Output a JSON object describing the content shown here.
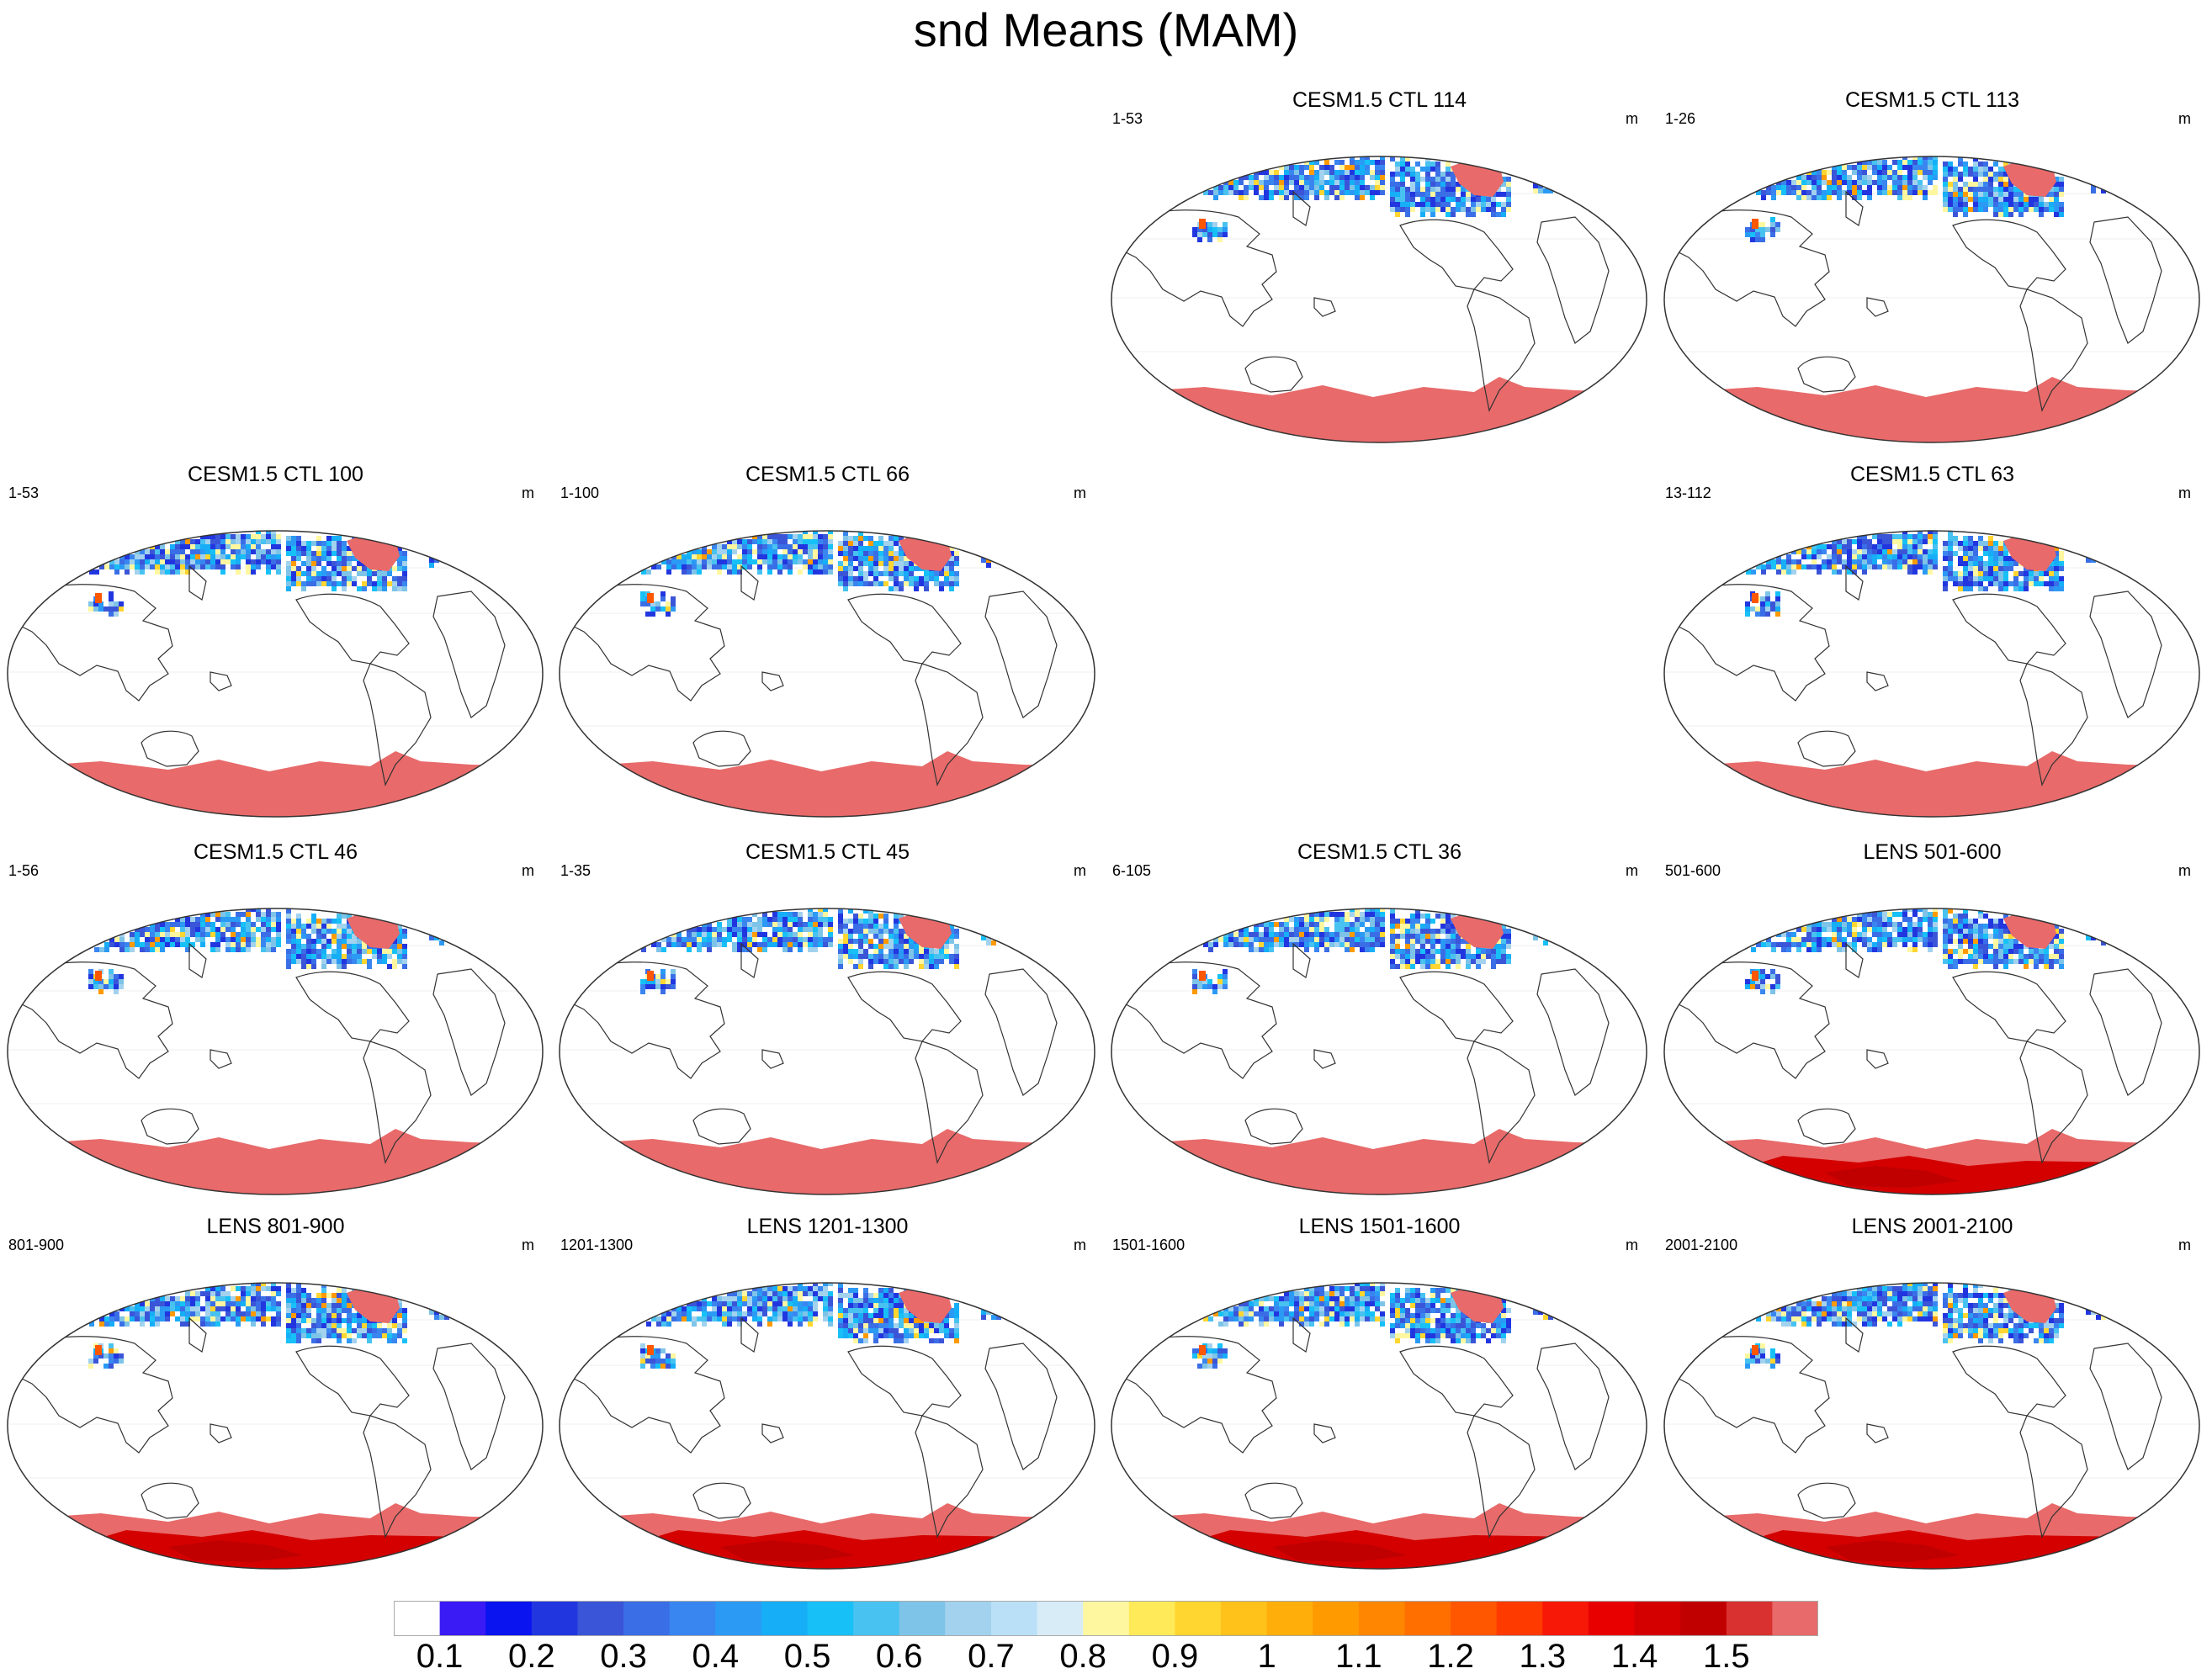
{
  "title": "snd Means (MAM)",
  "units": "m",
  "panels": [
    {
      "title": "CESM1.5 CTL 114",
      "years": "1-53",
      "units": "m",
      "ant": "flat"
    },
    {
      "title": "CESM1.5 CTL 113",
      "years": "1-26",
      "units": "m",
      "ant": "flat"
    },
    {
      "title": "CESM1.5 CTL 100",
      "years": "1-53",
      "units": "m",
      "ant": "flat"
    },
    {
      "title": "CESM1.5 CTL 66",
      "years": "1-100",
      "units": "m",
      "ant": "flat"
    },
    {
      "title": "CESM1.5 CTL 63",
      "years": "13-112",
      "units": "m",
      "ant": "flat"
    },
    {
      "title": "CESM1.5 CTL 46",
      "years": "1-56",
      "units": "m",
      "ant": "flat"
    },
    {
      "title": "CESM1.5 CTL 45",
      "years": "1-35",
      "units": "m",
      "ant": "flat"
    },
    {
      "title": "CESM1.5 CTL 36",
      "years": "6-105",
      "units": "m",
      "ant": "flat"
    },
    {
      "title": "LENS 501-600",
      "years": "501-600",
      "units": "m",
      "ant": "deep"
    },
    {
      "title": "LENS 801-900",
      "years": "801-900",
      "units": "m",
      "ant": "deep"
    },
    {
      "title": "LENS 1201-1300",
      "years": "1201-1300",
      "units": "m",
      "ant": "deep"
    },
    {
      "title": "LENS 1501-1600",
      "years": "1501-1600",
      "units": "m",
      "ant": "deep"
    },
    {
      "title": "LENS 2001-2100",
      "years": "2001-2100",
      "units": "m",
      "ant": "deep"
    }
  ],
  "colorbar": {
    "labels": [
      "0.1",
      "0.2",
      "0.3",
      "0.4",
      "0.5",
      "0.6",
      "0.7",
      "0.8",
      "0.9",
      "1",
      "1.1",
      "1.2",
      "1.3",
      "1.4",
      "1.5"
    ],
    "colors": [
      "#ffffff",
      "#3a1af5",
      "#0a14f0",
      "#2236e0",
      "#3b55d8",
      "#3a6ee6",
      "#3a86f0",
      "#2a9af5",
      "#16aef7",
      "#17c0f7",
      "#48c2f0",
      "#7ec4e8",
      "#a3d2ee",
      "#b9e0f6",
      "#d8ecf8",
      "#fff7a0",
      "#ffea5a",
      "#ffd530",
      "#ffc21a",
      "#ffae0a",
      "#ff9a00",
      "#ff8600",
      "#ff6f00",
      "#ff5600",
      "#ff3a00",
      "#f81808",
      "#e80000",
      "#d40000",
      "#c00000",
      "#d93030",
      "#e86a6a"
    ]
  }
}
